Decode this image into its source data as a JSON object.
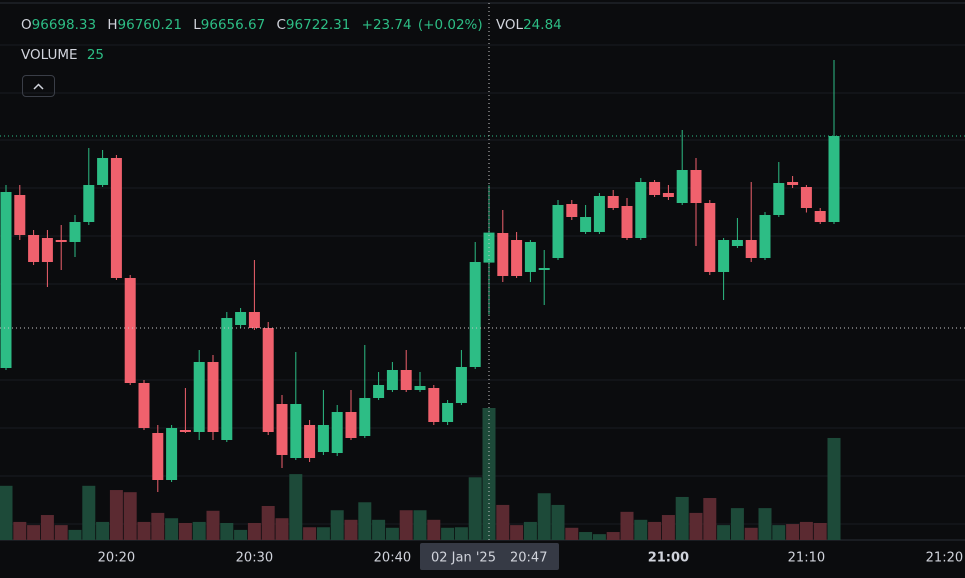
{
  "chart_data": {
    "type": "candlestick",
    "x": [
      "20:12",
      "20:13",
      "20:14",
      "20:15",
      "20:16",
      "20:17",
      "20:18",
      "20:19",
      "20:20",
      "20:21",
      "20:22",
      "20:23",
      "20:24",
      "20:25",
      "20:26",
      "20:27",
      "20:28",
      "20:29",
      "20:30",
      "20:31",
      "20:32",
      "20:33",
      "20:34",
      "20:35",
      "20:36",
      "20:37",
      "20:38",
      "20:39",
      "20:40",
      "20:41",
      "20:42",
      "20:43",
      "20:44",
      "20:45",
      "20:46",
      "20:47",
      "20:48",
      "20:49",
      "20:50",
      "20:51",
      "20:52",
      "20:53",
      "20:54",
      "20:55",
      "20:56",
      "20:57",
      "20:58",
      "20:59",
      "21:00",
      "21:01",
      "21:02",
      "21:03",
      "21:04",
      "21:05",
      "21:06",
      "21:07",
      "21:08",
      "21:09",
      "21:10",
      "21:11",
      "21:12"
    ],
    "open": [
      96614.0,
      96752.4,
      96720.4,
      96718.0,
      96716.4,
      96714.8,
      96730.8,
      96760.4,
      96782.0,
      96686.0,
      96602.0,
      96562.0,
      96524.4,
      96564.4,
      96562.8,
      96618.8,
      96556.4,
      96648.4,
      96658.8,
      96646.0,
      96585.2,
      96542.0,
      96568.4,
      96546.8,
      96546.0,
      96578.8,
      96559.6,
      96590.0,
      96596.4,
      96612.4,
      96596.4,
      96598.0,
      96570.8,
      96586.0,
      96614.8,
      96698.33,
      96722.0,
      96716.4,
      96690.8,
      96692.4,
      96702.0,
      96745.2,
      96722.8,
      96722.8,
      96751.6,
      96743.6,
      96718.0,
      96762.8,
      96754.0,
      96746.0,
      96772.4,
      96746.0,
      96690.8,
      96711.6,
      96716.4,
      96702.0,
      96736.4,
      96762.8,
      96758.8,
      96739.6,
      96730.8
    ],
    "high": [
      96760.4,
      96760.4,
      96724.4,
      96724.4,
      96728.4,
      96736.4,
      96790.0,
      96788.4,
      96784.4,
      96688.4,
      96604.4,
      96568.4,
      96568.4,
      96598.0,
      96628.4,
      96624.4,
      96658.8,
      96662.0,
      96700.4,
      96650.8,
      96592.4,
      96626.8,
      96572.4,
      96596.4,
      96584.4,
      96596.4,
      96632.4,
      96610.8,
      96618.8,
      96628.4,
      96610.8,
      96600.4,
      96588.4,
      96628.4,
      96714.8,
      96760.21,
      96740.4,
      96722.8,
      96716.4,
      96708.4,
      96748.4,
      96748.4,
      96744.4,
      96754.0,
      96756.4,
      96750.0,
      96766.0,
      96764.4,
      96760.4,
      96804.4,
      96782.0,
      96748.4,
      96718.0,
      96734.0,
      96762.8,
      96738.8,
      96778.8,
      96767.6,
      96760.4,
      96742.0,
      96860.4
    ],
    "low": [
      96612.4,
      96716.4,
      96696.4,
      96678.8,
      96692.4,
      96702.8,
      96728.4,
      96758.8,
      96684.4,
      96600.4,
      96564.4,
      96514.8,
      96522.8,
      96562.0,
      96556.4,
      96556.4,
      96554.8,
      96646.0,
      96644.4,
      96560.4,
      96534.0,
      96540.4,
      96538.8,
      96544.4,
      96543.6,
      96556.4,
      96558.0,
      96588.4,
      96594.8,
      96594.8,
      96594.8,
      96568.4,
      96568.4,
      96584.4,
      96613.2,
      96656.67,
      96682.8,
      96686.0,
      96682.8,
      96664.4,
      96700.4,
      96732.4,
      96721.2,
      96721.2,
      96740.4,
      96716.4,
      96716.4,
      96750.8,
      96748.4,
      96744.4,
      96711.6,
      96688.4,
      96668.4,
      96710.0,
      96698.8,
      96700.4,
      96734.8,
      96758.0,
      96738.4,
      96729.2,
      96729.2
    ],
    "close": [
      96754.8,
      96720.4,
      96698.8,
      96698.8,
      96714.8,
      96730.8,
      96760.4,
      96782.0,
      96686.0,
      96602.0,
      96566.0,
      96524.4,
      96566.0,
      96562.8,
      96618.8,
      96562.8,
      96654.0,
      96658.8,
      96646.0,
      96562.8,
      96544.4,
      96585.2,
      96542.0,
      96568.4,
      96578.8,
      96558.0,
      96590.0,
      96600.4,
      96612.4,
      96596.4,
      96599.6,
      96570.8,
      96586.0,
      96614.8,
      96698.8,
      96722.31,
      96687.6,
      96687.6,
      96714.8,
      96694.0,
      96744.4,
      96734.8,
      96734.8,
      96751.6,
      96742.0,
      96718.0,
      96762.8,
      96752.4,
      96750.8,
      96772.4,
      96746.0,
      96690.8,
      96716.4,
      96716.4,
      96702.0,
      96736.4,
      96762.0,
      96760.4,
      96742.0,
      96730.8,
      96799.6
    ],
    "volume": [
      10.2,
      3.4,
      2.8,
      4.7,
      2.8,
      1.9,
      10.2,
      3.4,
      9.4,
      9.0,
      3.4,
      5.1,
      4.1,
      3.2,
      3.4,
      5.5,
      3.2,
      1.9,
      3.2,
      6.4,
      4.1,
      12.4,
      2.4,
      2.4,
      5.6,
      3.8,
      7.1,
      3.8,
      2.3,
      5.6,
      5.6,
      3.8,
      2.3,
      2.4,
      11.8,
      24.84,
      6.6,
      2.8,
      3.4,
      8.8,
      6.6,
      2.3,
      1.5,
      1.1,
      1.5,
      5.3,
      3.8,
      3.4,
      4.7,
      8.1,
      5.1,
      7.9,
      2.8,
      6.0,
      2.3,
      6.0,
      2.8,
      3.0,
      3.4,
      3.2,
      19.2
    ],
    "up_color": "#2dbd85",
    "down_color": "#f0616d",
    "up_volume_color": "#1d4a39",
    "down_volume_color": "#5b2a31",
    "xticks": [
      "20:20",
      "20:30",
      "20:40",
      "21:00",
      "21:10",
      "21:20"
    ],
    "crosshair": {
      "date": "02 Jan '25",
      "time": "20:47",
      "price": 96646.0
    },
    "legend_labels": {
      "open": "O",
      "high": "H",
      "low": "L",
      "close": "C",
      "volume": "VOL"
    },
    "legend": {
      "change": {
        "value": 23.74,
        "label": "+23.74"
      },
      "change_pct": {
        "value": 0.02,
        "label": "(+0.02%)"
      }
    },
    "volume_indicator": {
      "label": "VOLUME",
      "period": 25
    }
  }
}
